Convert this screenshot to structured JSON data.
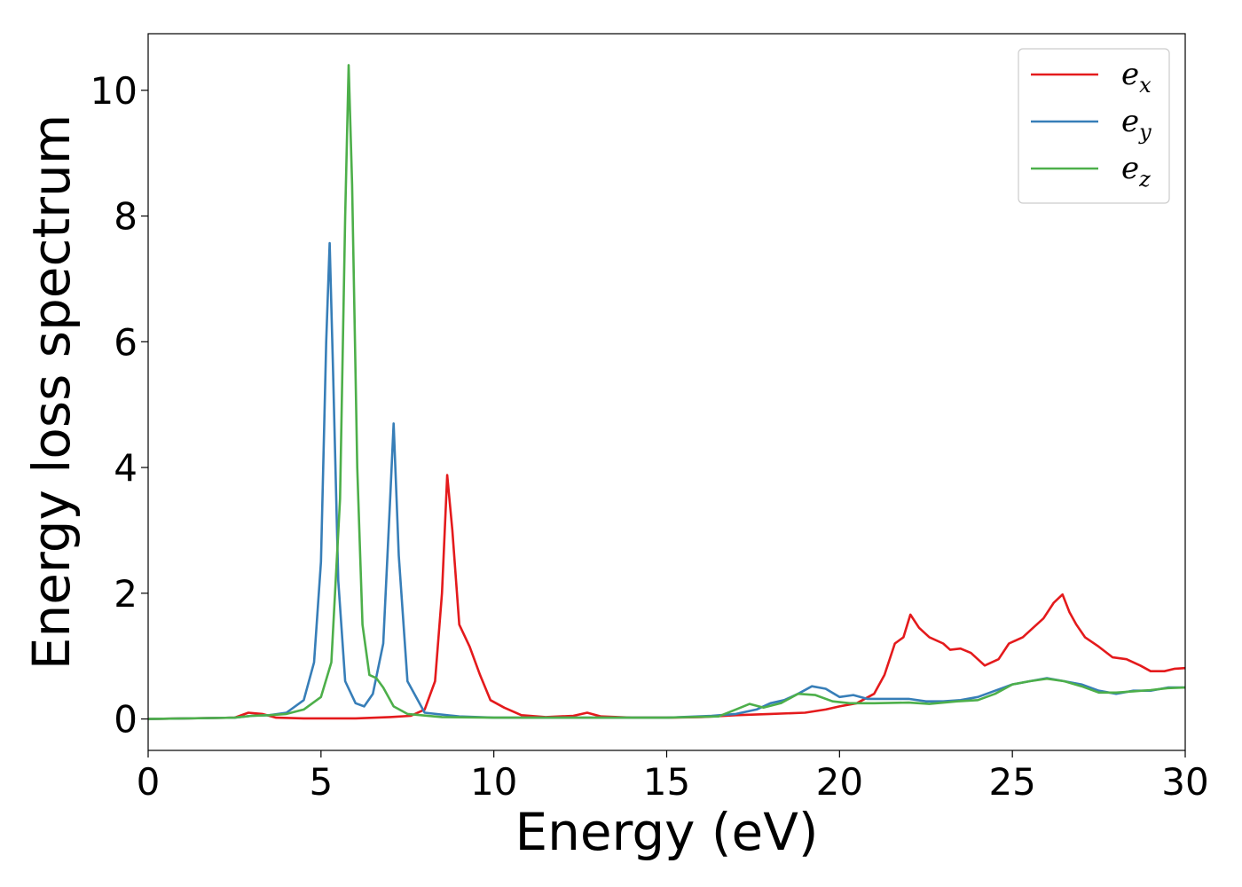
{
  "chart_data": {
    "type": "line",
    "title": "",
    "xlabel": "Energy (eV)",
    "ylabel": "Energy loss spectrum",
    "xlim": [
      0,
      30
    ],
    "ylim": [
      -0.5,
      10.9
    ],
    "xticks": [
      0,
      5,
      10,
      15,
      20,
      25,
      30
    ],
    "yticks": [
      0,
      2,
      4,
      6,
      8,
      10
    ],
    "grid": false,
    "legend_position": "top-right",
    "series": [
      {
        "name": "e_x",
        "base": "e",
        "sub": "x",
        "color": "#e41a1c",
        "points": [
          [
            0,
            0
          ],
          [
            2.5,
            0.02
          ],
          [
            2.9,
            0.1
          ],
          [
            3.3,
            0.08
          ],
          [
            3.7,
            0.02
          ],
          [
            4.5,
            0.01
          ],
          [
            6,
            0.01
          ],
          [
            7,
            0.03
          ],
          [
            7.6,
            0.05
          ],
          [
            8.0,
            0.15
          ],
          [
            8.3,
            0.6
          ],
          [
            8.5,
            2.0
          ],
          [
            8.65,
            3.88
          ],
          [
            8.8,
            3.0
          ],
          [
            9.0,
            1.5
          ],
          [
            9.3,
            1.15
          ],
          [
            9.6,
            0.7
          ],
          [
            9.9,
            0.3
          ],
          [
            10.3,
            0.18
          ],
          [
            10.8,
            0.06
          ],
          [
            11.5,
            0.03
          ],
          [
            12.3,
            0.05
          ],
          [
            12.7,
            0.1
          ],
          [
            13.1,
            0.04
          ],
          [
            14,
            0.02
          ],
          [
            15,
            0.02
          ],
          [
            16,
            0.03
          ],
          [
            17,
            0.06
          ],
          [
            18,
            0.08
          ],
          [
            19,
            0.1
          ],
          [
            19.6,
            0.15
          ],
          [
            20.0,
            0.2
          ],
          [
            20.5,
            0.25
          ],
          [
            21.0,
            0.4
          ],
          [
            21.3,
            0.7
          ],
          [
            21.6,
            1.2
          ],
          [
            21.85,
            1.3
          ],
          [
            22.05,
            1.66
          ],
          [
            22.3,
            1.45
          ],
          [
            22.6,
            1.3
          ],
          [
            23.0,
            1.2
          ],
          [
            23.2,
            1.1
          ],
          [
            23.5,
            1.12
          ],
          [
            23.8,
            1.05
          ],
          [
            24.2,
            0.85
          ],
          [
            24.6,
            0.95
          ],
          [
            24.9,
            1.2
          ],
          [
            25.3,
            1.3
          ],
          [
            25.6,
            1.45
          ],
          [
            25.9,
            1.6
          ],
          [
            26.2,
            1.85
          ],
          [
            26.45,
            1.98
          ],
          [
            26.65,
            1.7
          ],
          [
            26.85,
            1.5
          ],
          [
            27.1,
            1.3
          ],
          [
            27.5,
            1.15
          ],
          [
            27.9,
            0.98
          ],
          [
            28.3,
            0.95
          ],
          [
            28.7,
            0.85
          ],
          [
            29.0,
            0.76
          ],
          [
            29.4,
            0.76
          ],
          [
            29.7,
            0.8
          ],
          [
            30,
            0.81
          ]
        ]
      },
      {
        "name": "e_y",
        "base": "e",
        "sub": "y",
        "color": "#377eb8",
        "points": [
          [
            0,
            0
          ],
          [
            2.5,
            0.02
          ],
          [
            3.0,
            0.05
          ],
          [
            3.5,
            0.06
          ],
          [
            4.0,
            0.1
          ],
          [
            4.5,
            0.3
          ],
          [
            4.8,
            0.9
          ],
          [
            5.0,
            2.5
          ],
          [
            5.15,
            6.0
          ],
          [
            5.25,
            7.57
          ],
          [
            5.35,
            5.5
          ],
          [
            5.5,
            2.2
          ],
          [
            5.7,
            0.6
          ],
          [
            6.0,
            0.25
          ],
          [
            6.25,
            0.2
          ],
          [
            6.5,
            0.4
          ],
          [
            6.8,
            1.2
          ],
          [
            7.0,
            3.5
          ],
          [
            7.1,
            4.7
          ],
          [
            7.25,
            2.6
          ],
          [
            7.5,
            0.6
          ],
          [
            8.0,
            0.1
          ],
          [
            9.0,
            0.04
          ],
          [
            10,
            0.02
          ],
          [
            12,
            0.02
          ],
          [
            15,
            0.02
          ],
          [
            16.3,
            0.05
          ],
          [
            17.0,
            0.08
          ],
          [
            17.6,
            0.15
          ],
          [
            18.0,
            0.25
          ],
          [
            18.4,
            0.3
          ],
          [
            18.8,
            0.4
          ],
          [
            19.2,
            0.52
          ],
          [
            19.6,
            0.48
          ],
          [
            20.0,
            0.35
          ],
          [
            20.4,
            0.38
          ],
          [
            20.8,
            0.32
          ],
          [
            21.5,
            0.32
          ],
          [
            22.0,
            0.32
          ],
          [
            22.5,
            0.28
          ],
          [
            23.0,
            0.28
          ],
          [
            23.5,
            0.3
          ],
          [
            24.0,
            0.35
          ],
          [
            24.5,
            0.45
          ],
          [
            25.0,
            0.55
          ],
          [
            25.5,
            0.6
          ],
          [
            26.0,
            0.65
          ],
          [
            26.5,
            0.6
          ],
          [
            27.0,
            0.55
          ],
          [
            27.5,
            0.45
          ],
          [
            28.0,
            0.4
          ],
          [
            28.5,
            0.45
          ],
          [
            29.0,
            0.45
          ],
          [
            29.5,
            0.5
          ],
          [
            30,
            0.5
          ]
        ]
      },
      {
        "name": "e_z",
        "base": "e",
        "sub": "z",
        "color": "#4daf4a",
        "points": [
          [
            0,
            0
          ],
          [
            2.5,
            0.02
          ],
          [
            3.0,
            0.05
          ],
          [
            3.5,
            0.06
          ],
          [
            4.0,
            0.08
          ],
          [
            4.5,
            0.15
          ],
          [
            5.0,
            0.35
          ],
          [
            5.3,
            0.9
          ],
          [
            5.55,
            3.5
          ],
          [
            5.7,
            8.0
          ],
          [
            5.8,
            10.4
          ],
          [
            5.9,
            8.5
          ],
          [
            6.05,
            4.0
          ],
          [
            6.2,
            1.5
          ],
          [
            6.4,
            0.7
          ],
          [
            6.6,
            0.65
          ],
          [
            6.8,
            0.5
          ],
          [
            7.1,
            0.2
          ],
          [
            7.5,
            0.08
          ],
          [
            8.5,
            0.03
          ],
          [
            10,
            0.02
          ],
          [
            12,
            0.02
          ],
          [
            15,
            0.02
          ],
          [
            16.5,
            0.04
          ],
          [
            17.0,
            0.15
          ],
          [
            17.4,
            0.24
          ],
          [
            17.8,
            0.18
          ],
          [
            18.3,
            0.25
          ],
          [
            18.8,
            0.4
          ],
          [
            19.3,
            0.38
          ],
          [
            19.8,
            0.28
          ],
          [
            20.3,
            0.25
          ],
          [
            21,
            0.25
          ],
          [
            22,
            0.26
          ],
          [
            22.6,
            0.24
          ],
          [
            23.4,
            0.28
          ],
          [
            24.0,
            0.3
          ],
          [
            24.5,
            0.4
          ],
          [
            25.0,
            0.55
          ],
          [
            25.5,
            0.6
          ],
          [
            26.0,
            0.64
          ],
          [
            26.5,
            0.6
          ],
          [
            27.0,
            0.52
          ],
          [
            27.5,
            0.42
          ],
          [
            28.0,
            0.42
          ],
          [
            28.5,
            0.44
          ],
          [
            29.0,
            0.46
          ],
          [
            29.5,
            0.49
          ],
          [
            30,
            0.5
          ]
        ]
      }
    ]
  }
}
